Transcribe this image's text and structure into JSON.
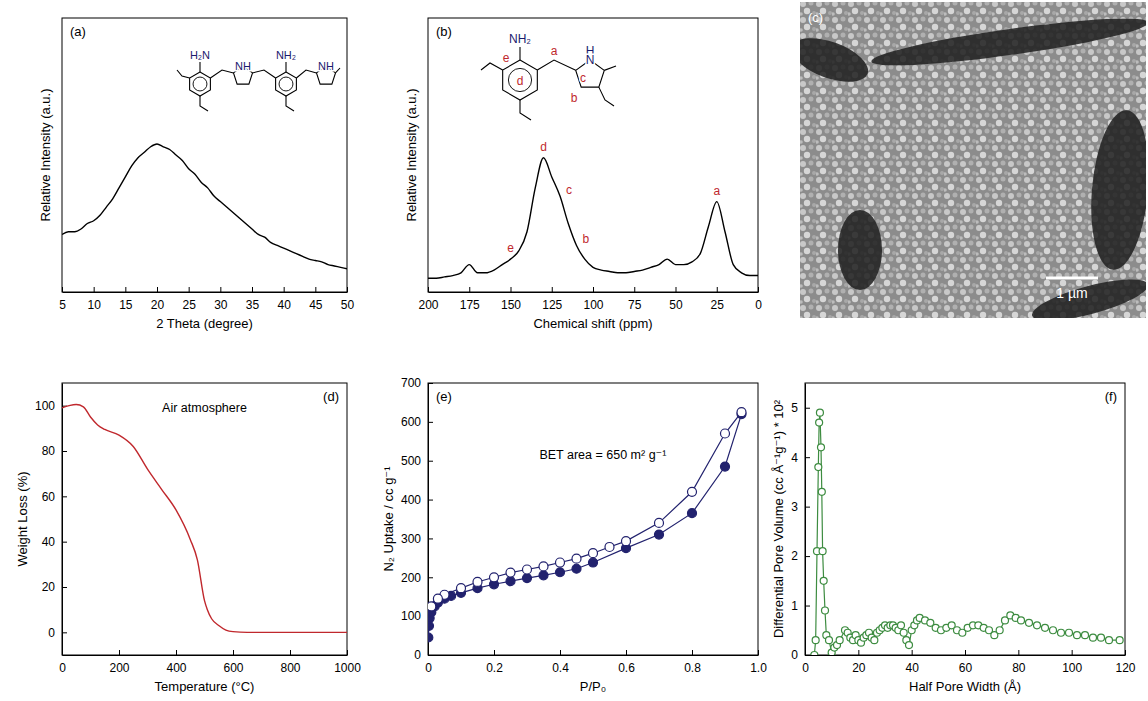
{
  "chart_data": [
    {
      "type": "line",
      "panel": "(a)",
      "x_label": "2 Theta (degree)",
      "y_label": "Relative Intensity (a.u.)",
      "structure_labels": [
        {
          "text": "H₂N",
          "color": "#1a1a6e"
        },
        {
          "text": "NH",
          "color": "#1a1a6e"
        },
        {
          "text": "NH₂",
          "color": "#1a1a6e"
        },
        {
          "text": "NH",
          "color": "#1a1a6e"
        }
      ],
      "x": [
        5,
        6,
        7,
        8,
        9,
        10,
        11,
        12,
        13,
        14,
        15,
        16,
        17,
        18,
        19,
        20,
        21,
        22,
        23,
        24,
        25,
        26,
        27,
        28,
        29,
        30,
        31,
        32,
        33,
        34,
        35,
        36,
        37,
        38,
        39,
        40,
        41,
        42,
        43,
        44,
        45,
        46,
        47,
        48,
        49,
        50
      ],
      "series": [
        {
          "color": "#000000",
          "values": [
            0.21,
            0.22,
            0.22,
            0.23,
            0.25,
            0.26,
            0.28,
            0.31,
            0.34,
            0.38,
            0.42,
            0.46,
            0.49,
            0.51,
            0.53,
            0.54,
            0.53,
            0.52,
            0.5,
            0.48,
            0.45,
            0.43,
            0.4,
            0.38,
            0.35,
            0.33,
            0.31,
            0.29,
            0.27,
            0.25,
            0.23,
            0.21,
            0.2,
            0.18,
            0.17,
            0.16,
            0.15,
            0.14,
            0.13,
            0.12,
            0.115,
            0.11,
            0.1,
            0.095,
            0.09,
            0.085
          ]
        }
      ],
      "xlim": [
        5,
        50
      ],
      "xticks": [
        5,
        10,
        15,
        20,
        25,
        30,
        35,
        40,
        45,
        50
      ],
      "ylim": [
        0,
        1
      ],
      "tick_labels": "x"
    },
    {
      "type": "line",
      "panel": "(b)",
      "x_label": "Chemical shift (ppm)",
      "y_label": "Relative Intensity (a.u.)",
      "structure_labels": [
        {
          "text": "NH₂",
          "color": "#1a1a6e"
        },
        {
          "text": "H",
          "color": "#1a1a6e"
        },
        {
          "text": "N",
          "color": "#1a1a6e"
        },
        {
          "text": "a",
          "color": "#c0282d"
        },
        {
          "text": "b",
          "color": "#c0282d"
        },
        {
          "text": "c",
          "color": "#c0282d"
        },
        {
          "text": "d",
          "color": "#c0282d"
        },
        {
          "text": "e",
          "color": "#c0282d"
        }
      ],
      "peak_labels": [
        {
          "text": "e",
          "x": 150,
          "color": "#c0282d"
        },
        {
          "text": "d",
          "x": 130,
          "color": "#c0282d"
        },
        {
          "text": "c",
          "x": 120,
          "color": "#c0282d"
        },
        {
          "text": "b",
          "x": 110,
          "color": "#c0282d"
        },
        {
          "text": "a",
          "x": 25,
          "color": "#c0282d"
        }
      ],
      "x": [
        200,
        195,
        190,
        185,
        180,
        175,
        170,
        165,
        160,
        155,
        150,
        145,
        140,
        135,
        130,
        125,
        120,
        115,
        110,
        105,
        100,
        95,
        90,
        85,
        80,
        75,
        70,
        65,
        60,
        55,
        50,
        45,
        40,
        35,
        30,
        25,
        20,
        15,
        10,
        5,
        0
      ],
      "series": [
        {
          "color": "#000000",
          "values": [
            0.05,
            0.05,
            0.055,
            0.06,
            0.07,
            0.1,
            0.07,
            0.07,
            0.08,
            0.1,
            0.12,
            0.15,
            0.22,
            0.38,
            0.49,
            0.42,
            0.35,
            0.25,
            0.17,
            0.12,
            0.09,
            0.08,
            0.075,
            0.07,
            0.07,
            0.075,
            0.08,
            0.09,
            0.1,
            0.12,
            0.1,
            0.1,
            0.11,
            0.14,
            0.24,
            0.33,
            0.22,
            0.1,
            0.07,
            0.06,
            0.06
          ]
        }
      ],
      "xlim": [
        200,
        0
      ],
      "xticks": [
        200,
        175,
        150,
        125,
        100,
        75,
        50,
        25,
        0
      ],
      "ylim": [
        0,
        1
      ],
      "tick_labels": "x"
    },
    {
      "type": "image",
      "panel": "(c)",
      "scale_bar": "1 µm"
    },
    {
      "type": "line",
      "panel": "(d)",
      "annotation": "Air atmosphere",
      "x_label": "Temperature (°C)",
      "y_label": "Weight Loss (%)",
      "x": [
        0,
        25,
        50,
        75,
        100,
        125,
        150,
        200,
        250,
        300,
        350,
        400,
        450,
        475,
        500,
        510,
        525,
        550,
        575,
        600,
        650,
        700,
        800,
        900,
        1000
      ],
      "series": [
        {
          "color": "#c0282d",
          "values": [
            99,
            100,
            100.5,
            99.5,
            95,
            91.5,
            89.5,
            87,
            82,
            72,
            63,
            54,
            41,
            32,
            14,
            10,
            6,
            3,
            1,
            0.3,
            0,
            0,
            0,
            0,
            0
          ]
        }
      ],
      "xlim": [
        0,
        1000
      ],
      "xticks": [
        0,
        200,
        400,
        600,
        800,
        1000
      ],
      "ylim": [
        -10,
        110
      ],
      "yticks": [
        0,
        20,
        40,
        60,
        80,
        100
      ]
    },
    {
      "type": "line",
      "panel": "(e)",
      "annotation": "BET area = 650 m² g⁻¹",
      "x_label": "P/P₀",
      "y_label": "N₂ Uptake / cc g⁻¹",
      "series": [
        {
          "color": "#22226e",
          "marker": "circle",
          "x": [
            0.001,
            0.003,
            0.005,
            0.01,
            0.02,
            0.03,
            0.05,
            0.07,
            0.1,
            0.15,
            0.2,
            0.25,
            0.3,
            0.35,
            0.4,
            0.45,
            0.5,
            0.6,
            0.7,
            0.8,
            0.9,
            0.95
          ],
          "values": [
            45,
            75,
            95,
            110,
            125,
            135,
            145,
            152,
            160,
            172,
            182,
            190,
            198,
            205,
            213,
            222,
            238,
            275,
            310,
            365,
            485,
            620
          ]
        },
        {
          "color": "#22226e",
          "marker": "open_circle",
          "x": [
            0.95,
            0.9,
            0.8,
            0.7,
            0.6,
            0.55,
            0.5,
            0.45,
            0.4,
            0.35,
            0.3,
            0.25,
            0.2,
            0.15,
            0.1,
            0.05,
            0.03,
            0.01
          ],
          "values": [
            625,
            570,
            420,
            340,
            293,
            278,
            262,
            248,
            238,
            228,
            220,
            212,
            200,
            188,
            172,
            155,
            145,
            125
          ]
        }
      ],
      "xlim": [
        0,
        1
      ],
      "xticks": [
        0,
        0.2,
        0.4,
        0.6,
        0.8,
        {
          "value": 1,
          "label": "1.0"
        }
      ],
      "ylim": [
        0,
        700
      ],
      "yticks": [
        0,
        100,
        200,
        300,
        400,
        500,
        600,
        700
      ]
    },
    {
      "type": "line",
      "panel": "(f)",
      "x_label": "Half Pore Width (Å)",
      "y_label": "Differential Pore Volume (cc Å⁻¹g⁻¹) * 10²",
      "x": [
        3.5,
        4,
        4.5,
        5,
        5.3,
        5.6,
        6,
        6.3,
        6.6,
        7,
        7.5,
        8,
        9,
        10,
        11,
        12,
        13,
        15,
        16,
        17,
        18,
        19,
        20,
        21,
        22,
        23,
        24,
        25,
        26,
        27,
        28,
        29,
        30,
        31,
        32,
        33,
        34,
        35,
        36,
        37,
        38,
        39,
        40,
        41,
        42,
        43,
        45,
        47,
        49,
        51,
        53,
        55,
        57,
        59,
        61,
        63,
        65,
        67,
        69,
        71,
        73,
        75,
        77,
        79,
        81,
        84,
        87,
        90,
        93,
        96,
        99,
        102,
        105,
        108,
        111,
        114,
        118
      ],
      "series": [
        {
          "color": "#3d8c40",
          "marker": "open_circle",
          "values": [
            0,
            0.3,
            2.1,
            3.8,
            4.7,
            4.9,
            4.2,
            3.3,
            2.1,
            1.5,
            0.9,
            0.4,
            0.3,
            0.05,
            0.15,
            0.2,
            0.3,
            0.5,
            0.45,
            0.35,
            0.3,
            0.4,
            0.3,
            0.25,
            0.35,
            0.4,
            0.45,
            0.35,
            0.3,
            0.45,
            0.5,
            0.55,
            0.6,
            0.55,
            0.6,
            0.6,
            0.55,
            0.5,
            0.6,
            0.45,
            0.3,
            0.2,
            0.5,
            0.6,
            0.7,
            0.75,
            0.7,
            0.65,
            0.55,
            0.5,
            0.55,
            0.6,
            0.5,
            0.45,
            0.55,
            0.6,
            0.6,
            0.55,
            0.5,
            0.4,
            0.5,
            0.7,
            0.8,
            0.75,
            0.7,
            0.65,
            0.6,
            0.55,
            0.5,
            0.45,
            0.45,
            0.4,
            0.4,
            0.35,
            0.35,
            0.3,
            0.3
          ]
        }
      ],
      "xlim": [
        0,
        120
      ],
      "xticks": [
        0,
        20,
        40,
        60,
        80,
        100,
        120
      ],
      "ylim": [
        0,
        5.5
      ],
      "yticks": [
        0,
        1,
        2,
        3,
        4,
        5
      ]
    }
  ]
}
